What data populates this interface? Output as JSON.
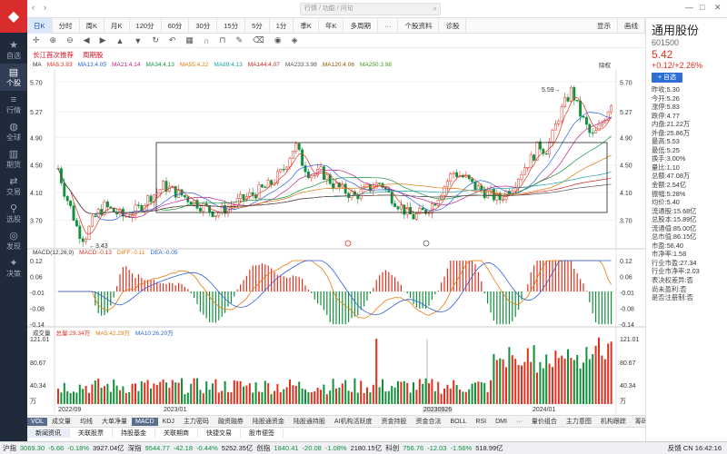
{
  "sidebar": {
    "items": [
      {
        "label": "自选",
        "icon": "star-icon"
      },
      {
        "label": "个股",
        "icon": "chart-icon",
        "active": true
      },
      {
        "label": "行情",
        "icon": "market-icon"
      },
      {
        "label": "全球",
        "icon": "globe-icon"
      },
      {
        "label": "期货",
        "icon": "futures-icon"
      },
      {
        "label": "交易",
        "icon": "trade-icon"
      },
      {
        "label": "选股",
        "icon": "filter-icon"
      },
      {
        "label": "发现",
        "icon": "discover-icon"
      },
      {
        "label": "决策",
        "icon": "decision-icon"
      }
    ]
  },
  "topbar": {
    "search_placeholder": "行情 / 功能 / 问句"
  },
  "periods": [
    "日K",
    "分时",
    "周K",
    "月K",
    "120分",
    "60分",
    "30分",
    "15分",
    "5分",
    "1分",
    "季K",
    "年K",
    "多周期",
    "···",
    "个股资料",
    "诊股"
  ],
  "period_active": 0,
  "period_right": [
    "显示",
    "画线"
  ],
  "stockrow": {
    "tag1": "长江首次推荐",
    "tag2": "周期股"
  },
  "ma_legend": [
    {
      "label": "MA",
      "color": "#333333"
    },
    {
      "label": "MA5:3.83",
      "color": "#e0301e"
    },
    {
      "label": "MA13:4.05",
      "color": "#2b5fd9"
    },
    {
      "label": "MA21:4.14",
      "color": "#c0208a"
    },
    {
      "label": "MA34:4.13",
      "color": "#11913c"
    },
    {
      "label": "MA55:4.22",
      "color": "#e07a0e"
    },
    {
      "label": "MA89:4.13",
      "color": "#1aa3a3"
    },
    {
      "label": "MA144:4.07",
      "color": "#c22"
    },
    {
      "label": "MA233:3.98",
      "color": "#555555"
    },
    {
      "label": "MA120:4.06",
      "color": "#8a5a00"
    },
    {
      "label": "MA250:3.98",
      "color": "#4a9a1e"
    }
  ],
  "fq_label": "除权",
  "chart_data": {
    "type": "candlestick",
    "y_ticks": [
      "5.70",
      "5.27",
      "4.90",
      "4.50",
      "4.10",
      "3.70"
    ],
    "y_range": [
      3.3,
      5.85
    ],
    "x_ticks": [
      "2022/09",
      "2023/01",
      "20230926",
      "2024/01"
    ],
    "annotations": {
      "high": "5.59",
      "low": "3.43"
    },
    "close_path": [
      4.45,
      4.1,
      3.85,
      3.55,
      3.43,
      3.65,
      3.8,
      3.9,
      3.85,
      3.8,
      3.75,
      3.8,
      3.85,
      3.95,
      4.05,
      4.1,
      4.2,
      4.15,
      4.1,
      4.05,
      4.0,
      3.95,
      3.9,
      3.85,
      3.8,
      3.85,
      3.9,
      3.95,
      4.0,
      4.05,
      4.1,
      4.15,
      4.2,
      4.3,
      4.4,
      4.6,
      4.8,
      4.55,
      4.4,
      4.35,
      4.4,
      4.3,
      4.2,
      4.15,
      4.1,
      4.05,
      4.1,
      4.15,
      4.2,
      4.25,
      4.1,
      4.0,
      3.9,
      3.8,
      3.75,
      3.8,
      3.85,
      3.95,
      4.1,
      4.25,
      4.4,
      4.35,
      4.3,
      4.2,
      4.15,
      4.1,
      4.05,
      4.0,
      4.1,
      4.2,
      4.35,
      4.5,
      4.6,
      4.8,
      4.7,
      4.9,
      5.2,
      5.4,
      5.59,
      5.3,
      5.1,
      4.9,
      5.0,
      5.2,
      5.42
    ],
    "macd_ticks": [
      "0.12",
      "0.06",
      "-0.01",
      "-0.08",
      "-0.14"
    ],
    "macd_legend": [
      {
        "label": "MACD(12,26,9)",
        "color": "#333333"
      },
      {
        "label": "MACD:-0.13",
        "color": "#e0301e"
      },
      {
        "label": "DIFF:-0.11",
        "color": "#e07a0e"
      },
      {
        "label": "DEA:-0.05",
        "color": "#2b5fd9"
      }
    ],
    "vol_ticks": [
      "121.01",
      "80.67",
      "40.34",
      "万"
    ],
    "vol_legend": [
      {
        "label": "成交量",
        "color": "#333333"
      },
      {
        "label": "总量:29.34万",
        "color": "#e0301e"
      },
      {
        "label": "MA5:42.29万",
        "color": "#e07a0e"
      },
      {
        "label": "MA10:26.20万",
        "color": "#2b5fd9"
      }
    ]
  },
  "indicator_tabs": [
    "VOL",
    "成交量",
    "均线",
    "大单净量",
    "MACD",
    "KDJ",
    "主力密码",
    "融资融券",
    "陆股通资金",
    "陆股通持股",
    "AI机构活跃度",
    "资金持股",
    "资金合法",
    "BOLL",
    "RSI",
    "DMI",
    "···",
    "量价组合",
    "主力意图",
    "机构跟踪",
    "筹码"
  ],
  "news_tabs": [
    "新闻资讯",
    "关联股票",
    "持股基金",
    "关联期商",
    "快捷交易",
    "股市便签"
  ],
  "status": {
    "items": [
      {
        "label": "沪指",
        "value": "3069.30",
        "chg": "-5.66",
        "pct": "-0.18%",
        "amt": "3927.04亿"
      },
      {
        "label": "深指",
        "value": "9544.77",
        "chg": "-42.18",
        "pct": "-0.44%",
        "amt": "5252.35亿"
      },
      {
        "label": "创指",
        "value": "1840.41",
        "chg": "-20.08",
        "pct": "-1.08%",
        "amt": "2180.15亿"
      },
      {
        "label": "科创",
        "value": "756.76",
        "chg": "-12.03",
        "pct": "-1.56%",
        "amt": "518.99亿"
      }
    ],
    "right": "反馈  CN 16:42:16"
  },
  "stock": {
    "name": "通用股份",
    "code": "601500",
    "price": "5.42",
    "change": "+0.12/+2.26%",
    "add_label": "+ 自选",
    "stats": [
      {
        "k": "昨收",
        "v": "5.30",
        "c": ""
      },
      {
        "k": "今开",
        "v": "5.26",
        "c": "dn"
      },
      {
        "k": "涨停",
        "v": "5.83",
        "c": "up"
      },
      {
        "k": "跌停",
        "v": "4.77",
        "c": "dn"
      },
      {
        "k": "内盘",
        "v": "21.22万",
        "c": "dn"
      },
      {
        "k": "外盘",
        "v": "25.86万",
        "c": "up"
      },
      {
        "k": "最高",
        "v": "5.53",
        "c": "up"
      },
      {
        "k": "最低",
        "v": "5.25",
        "c": "dn"
      },
      {
        "k": "换手",
        "v": "3.00%",
        "c": ""
      },
      {
        "k": "量比",
        "v": "1.10",
        "c": ""
      },
      {
        "k": "总额",
        "v": "47.08万",
        "c": ""
      },
      {
        "k": "金额",
        "v": "2.54亿",
        "c": ""
      },
      {
        "k": "振幅",
        "v": "5.28%",
        "c": ""
      },
      {
        "k": "均价",
        "v": "5.40",
        "c": "up"
      },
      {
        "k": "流通股",
        "v": "15.68亿",
        "c": ""
      },
      {
        "k": "总股本",
        "v": "15.89亿",
        "c": ""
      },
      {
        "k": "流通值",
        "v": "85.00亿",
        "c": ""
      },
      {
        "k": "总市值",
        "v": "86.15亿",
        "c": ""
      },
      {
        "k": "市盈",
        "v": "56.40",
        "c": ""
      },
      {
        "k": "市净率",
        "v": "1.58",
        "c": ""
      },
      {
        "k": "行业市盈",
        "v": "27.34",
        "c": ""
      },
      {
        "k": "行业市净率",
        "v": "2.03",
        "c": ""
      },
      {
        "k": "表决权差异",
        "v": "否",
        "c": ""
      },
      {
        "k": "尚未盈利",
        "v": "否",
        "c": ""
      },
      {
        "k": "是否注册制",
        "v": "否",
        "c": ""
      }
    ]
  }
}
